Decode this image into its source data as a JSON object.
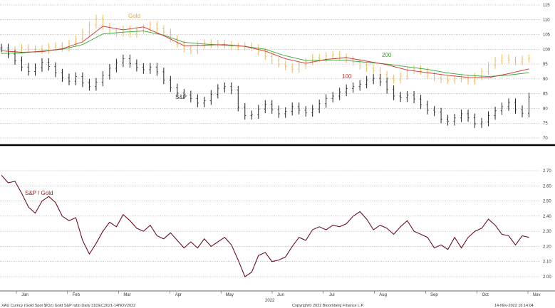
{
  "chart_data": [
    {
      "type": "candlestick",
      "panel": "top",
      "ylim": [
        70,
        115
      ],
      "yticks": [
        70,
        75,
        80,
        85,
        90,
        95,
        100,
        105,
        110,
        115
      ],
      "grid": "horizontal-dotted",
      "annotations": [
        {
          "text": "Gold",
          "color": "#e8a33c"
        },
        {
          "text": "S&P",
          "color": "#333333"
        },
        {
          "text": "100",
          "color": "#d32f2f"
        },
        {
          "text": "200",
          "color": "#2eaa2e"
        }
      ],
      "series": [
        {
          "name": "Gold",
          "style": "ohlc-bars",
          "color": "#f0b860",
          "x": [
            0,
            4,
            8,
            12,
            16,
            20,
            24,
            28,
            32,
            36,
            40,
            44,
            48,
            52,
            56,
            60,
            64,
            68,
            72,
            76,
            80,
            84,
            88,
            92,
            96,
            100,
            104,
            108,
            112,
            116,
            120,
            124,
            128,
            132,
            136,
            140,
            144,
            148,
            152,
            156,
            160,
            164,
            168,
            172,
            176,
            180,
            184,
            188,
            192,
            196,
            200,
            204,
            208,
            212,
            216,
            220,
            224,
            228,
            232,
            236,
            240,
            244,
            248,
            252,
            256,
            260,
            264,
            268,
            272,
            276,
            280,
            284,
            288,
            292,
            296,
            300,
            304,
            308,
            312
          ],
          "values": [
            99.5,
            99.2,
            99.8,
            100.5,
            99.9,
            100.2,
            99.6,
            100.8,
            101.2,
            100.4,
            102.0,
            103.5,
            105.8,
            108.2,
            110.5,
            107.8,
            106.2,
            105.5,
            106.8,
            105.2,
            106.5,
            107.2,
            108.4,
            107.0,
            105.8,
            103.6,
            101.8,
            100.2,
            99.5,
            101.4,
            102.2,
            101.6,
            102.0,
            101.5,
            101.0,
            100.8,
            101.2,
            100.5,
            99.2,
            97.6,
            96.2,
            95.0,
            94.1,
            93.2,
            94.5,
            95.8,
            97.2,
            96.9,
            97.8,
            98.3,
            97.4,
            96.5,
            95.6,
            94.4,
            93.6,
            92.8,
            91.5,
            90.2,
            89.6,
            91.0,
            92.8,
            93.4,
            92.6,
            91.2,
            90.4,
            89.8,
            89.5,
            90.1,
            90.0,
            89.3,
            90.8,
            92.5,
            94.6,
            96.2,
            97.1,
            96.4,
            95.8,
            96.7,
            97.0
          ]
        },
        {
          "name": "S&P",
          "style": "ohlc-bars",
          "color": "#222222",
          "x": [
            0,
            4,
            8,
            12,
            16,
            20,
            24,
            28,
            32,
            36,
            40,
            44,
            48,
            52,
            56,
            60,
            64,
            68,
            72,
            76,
            80,
            84,
            88,
            92,
            96,
            100,
            104,
            108,
            112,
            116,
            120,
            124,
            128,
            132,
            136,
            140,
            144,
            148,
            152,
            156,
            160,
            164,
            168,
            172,
            176,
            180,
            184,
            188,
            192,
            196,
            200,
            204,
            208,
            212,
            216,
            220,
            224,
            228,
            232,
            236,
            240,
            244,
            248,
            252,
            256,
            260,
            264,
            268,
            272,
            276,
            280,
            284,
            288,
            292,
            296,
            300,
            304,
            308,
            312
          ],
          "values": [
            100.5,
            98.4,
            96.2,
            94.0,
            92.5,
            93.8,
            95.6,
            94.2,
            92.0,
            90.4,
            89.2,
            90.8,
            88.6,
            87.4,
            88.9,
            91.2,
            93.6,
            95.4,
            96.8,
            95.2,
            93.9,
            93.1,
            94.0,
            92.4,
            89.6,
            87.0,
            85.2,
            84.6,
            83.4,
            81.8,
            82.6,
            84.8,
            86.8,
            87.4,
            86.2,
            80.4,
            77.6,
            77.9,
            79.8,
            81.4,
            79.6,
            78.2,
            79.0,
            80.6,
            79.4,
            78.6,
            79.8,
            81.6,
            83.4,
            84.2,
            85.6,
            86.7,
            87.4,
            88.2,
            89.6,
            90.2,
            89.0,
            86.4,
            84.2,
            83.6,
            84.5,
            83.2,
            81.2,
            79.4,
            78.8,
            76.4,
            75.6,
            76.8,
            78.2,
            76.9,
            74.8,
            75.4,
            77.6,
            79.2,
            80.6,
            82.0,
            79.6,
            78.4,
            83.9
          ]
        },
        {
          "name": "100",
          "style": "line",
          "color": "#d32f2f",
          "x": [
            0,
            12,
            24,
            36,
            48,
            60,
            72,
            84,
            96,
            108,
            120,
            132,
            144,
            156,
            168,
            180,
            192,
            204,
            216,
            228,
            240,
            252,
            264,
            276,
            288,
            300,
            312
          ],
          "values": [
            99.5,
            99.0,
            99.2,
            100.2,
            102.5,
            107.8,
            106.6,
            107.6,
            104.6,
            101.2,
            101.4,
            101.6,
            101.0,
            99.4,
            96.8,
            95.3,
            96.6,
            97.2,
            96.0,
            94.8,
            93.0,
            92.1,
            91.2,
            90.5,
            90.4,
            91.8,
            93.4
          ]
        },
        {
          "name": "200",
          "style": "line",
          "color": "#2eaa2e",
          "x": [
            0,
            12,
            24,
            36,
            48,
            60,
            72,
            84,
            96,
            108,
            120,
            132,
            144,
            156,
            168,
            180,
            192,
            204,
            216,
            228,
            240,
            252,
            264,
            276,
            288,
            300,
            312
          ],
          "values": [
            98.6,
            98.8,
            99.4,
            100.0,
            101.6,
            105.2,
            105.8,
            106.2,
            104.8,
            102.4,
            101.8,
            101.4,
            101.0,
            100.0,
            97.8,
            96.2,
            96.3,
            96.2,
            95.6,
            95.0,
            94.1,
            93.2,
            92.0,
            91.2,
            90.8,
            91.3,
            92.1
          ]
        }
      ]
    },
    {
      "type": "line",
      "panel": "bottom",
      "ylim": [
        1.95,
        2.75
      ],
      "yticks": [
        2.0,
        2.1,
        2.2,
        2.3,
        2.4,
        2.5,
        2.6,
        2.7
      ],
      "grid": "horizontal-dotted",
      "annotations": [
        {
          "text": "S&P / Gold",
          "color": "#8b1a1a"
        }
      ],
      "xlabels": [
        "Jan",
        "Feb",
        "Mar",
        "Apr",
        "May",
        "Jun",
        "Jul",
        "Aug",
        "Sep",
        "Oct",
        "Nov"
      ],
      "xlabel_sub": "2022",
      "series": [
        {
          "name": "S&P / Gold",
          "color": "#6b1020",
          "x": [
            0,
            4,
            8,
            12,
            16,
            20,
            24,
            28,
            32,
            36,
            40,
            44,
            48,
            52,
            56,
            60,
            64,
            68,
            72,
            76,
            80,
            84,
            88,
            92,
            96,
            100,
            104,
            108,
            112,
            116,
            120,
            124,
            128,
            132,
            136,
            140,
            144,
            148,
            152,
            156,
            160,
            164,
            168,
            172,
            176,
            180,
            184,
            188,
            192,
            196,
            200,
            204,
            208,
            212,
            216,
            220,
            224,
            228,
            232,
            236,
            240,
            244,
            248,
            252,
            256,
            260,
            264,
            268,
            272,
            276,
            280,
            284,
            288,
            292,
            296,
            300,
            304,
            308,
            312
          ],
          "values": [
            2.67,
            2.62,
            2.63,
            2.55,
            2.46,
            2.42,
            2.5,
            2.53,
            2.49,
            2.4,
            2.37,
            2.39,
            2.24,
            2.15,
            2.22,
            2.3,
            2.36,
            2.33,
            2.41,
            2.37,
            2.32,
            2.3,
            2.34,
            2.27,
            2.25,
            2.29,
            2.24,
            2.19,
            2.23,
            2.19,
            2.25,
            2.2,
            2.23,
            2.26,
            2.21,
            2.11,
            2.0,
            2.03,
            2.14,
            2.16,
            2.1,
            2.11,
            2.13,
            2.2,
            2.26,
            2.24,
            2.31,
            2.33,
            2.31,
            2.34,
            2.33,
            2.35,
            2.4,
            2.43,
            2.38,
            2.31,
            2.34,
            2.32,
            2.28,
            2.33,
            2.37,
            2.3,
            2.28,
            2.26,
            2.19,
            2.21,
            2.18,
            2.26,
            2.19,
            2.26,
            2.3,
            2.32,
            2.38,
            2.34,
            2.28,
            2.27,
            2.21,
            2.27,
            2.26
          ]
        }
      ]
    }
  ],
  "footer": {
    "left": "XAU Curncy (Gold Spot   $/Oz) Gold S&P ratio  Daily 31DEC2021-14NOV2022",
    "center": "Copyright© 2022 Bloomberg Finance L.P.",
    "right": "14-Nov-2022 16:14:04"
  }
}
